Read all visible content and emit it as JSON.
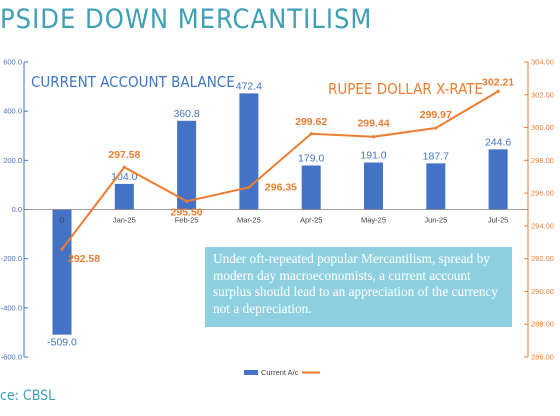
{
  "page": {
    "title": "PSIDE DOWN MERCANTILISM",
    "source": "ce: CBSL",
    "callout": "Under oft-repeated popular Mercantilism, spread by modern day macroeconomists, a current account surplus should lead to an appreciation of the currency not a depreciation."
  },
  "colors": {
    "bar": "#4472C4",
    "line": "#ED7D31",
    "left_axis": "#4472C4",
    "right_axis": "#ED7D31",
    "title": "#3E9FB7"
  },
  "chart_data": {
    "type": "bar+line",
    "categories": [
      "Dec-24",
      "Jan-25",
      "Feb-25",
      "Mar-25",
      "Apr-25",
      "May-25",
      "Jun-25",
      "Jul-25"
    ],
    "category_labels": [
      "D",
      "Jan-25",
      "Feb-25",
      "Mar-25",
      "Apr-25",
      "May-25",
      "Jun-25",
      "Jul-25"
    ],
    "series": [
      {
        "name": "Current A/c",
        "chart_label": "CURRENT ACCOUNT BALANCE",
        "type": "bar",
        "axis": "left",
        "values": [
          -509.0,
          104.0,
          360.8,
          472.4,
          179.0,
          191.0,
          187.7,
          244.6
        ],
        "labels": [
          "-509.0",
          "104.0",
          "360.8",
          "472.4",
          "179.0",
          "191.0",
          "187.7",
          "244.6"
        ]
      },
      {
        "name": "",
        "chart_label": "RUPEE DOLLAR X-RATE",
        "type": "line",
        "axis": "right",
        "values": [
          292.58,
          297.58,
          295.5,
          296.35,
          299.62,
          299.44,
          299.97,
          302.21
        ],
        "labels": [
          "292.58",
          "297.58",
          "295.50",
          "296.35",
          "299.62",
          "299.44",
          "299.97",
          "302.21"
        ]
      }
    ],
    "left_axis": {
      "min": -600,
      "max": 600,
      "ticks": [
        "-600.0",
        "-400.0",
        "-200.0",
        "0.0",
        "200.0",
        "400.0",
        "600.0"
      ]
    },
    "right_axis": {
      "min": 286,
      "max": 304,
      "ticks": [
        "286.00",
        "288.00",
        "290.00",
        "292.00",
        "294.00",
        "296.00",
        "298.00",
        "300.00",
        "302.00",
        "304.00"
      ]
    },
    "legend": {
      "position": "bottom",
      "entries": [
        "Current A/c",
        ""
      ]
    },
    "grid": false
  }
}
